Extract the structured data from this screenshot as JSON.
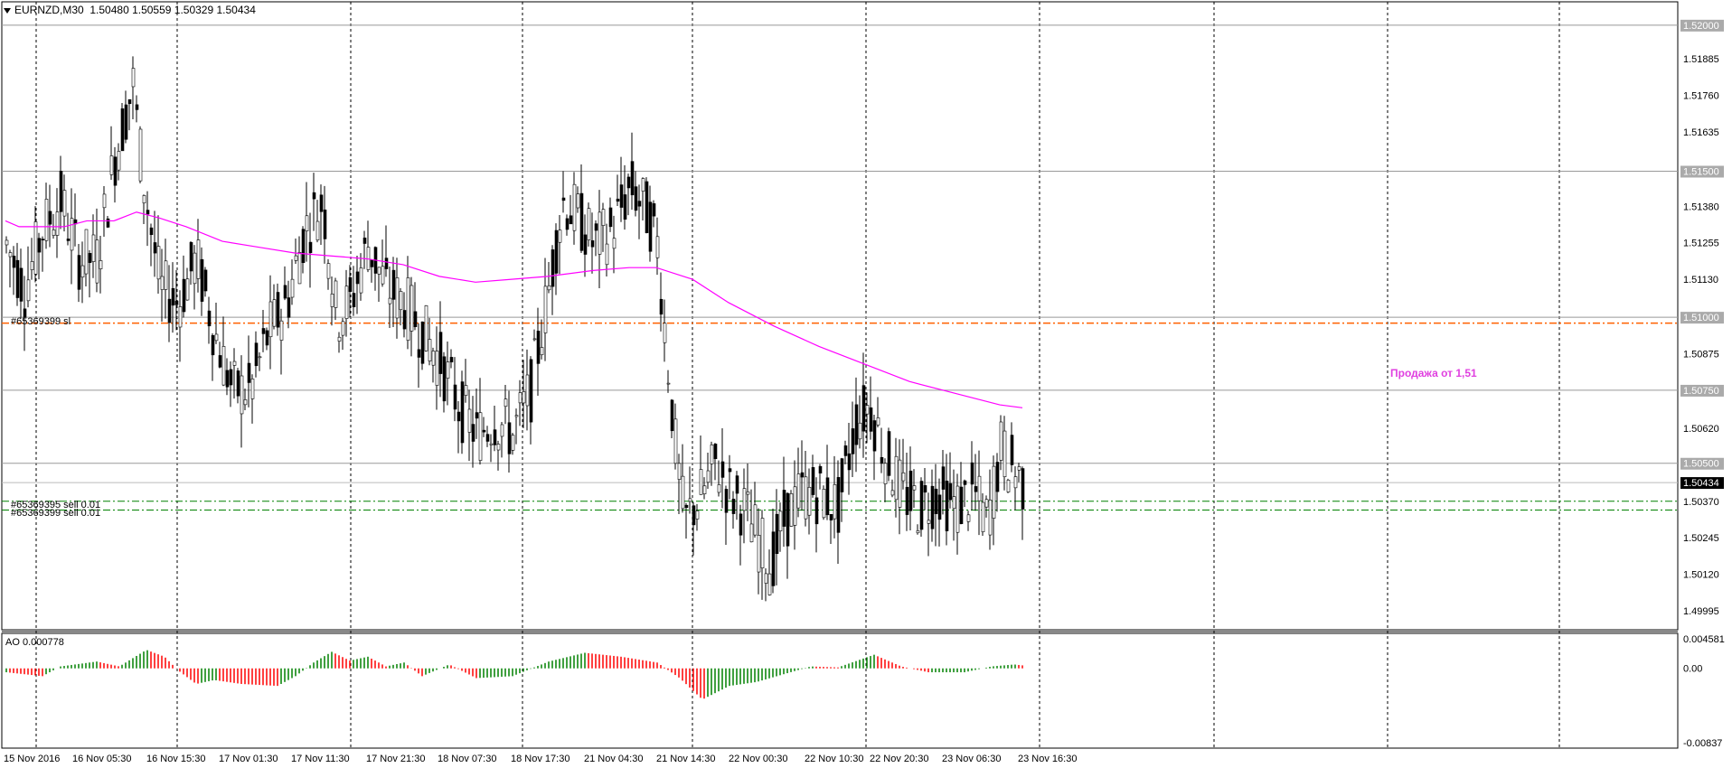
{
  "header": {
    "symbol_tf": "EURNZD,M30",
    "ohlc": "1.50480 1.50559 1.50329 1.50434"
  },
  "orders": {
    "sl": "#65369399 sl",
    "sell1": "#65369395 sell 0.01",
    "sell2": "#65369399 sell 0.01"
  },
  "note": "Продажа от 1,51",
  "indicator": {
    "label": "AO 0.000778",
    "scale_top": "0.004581",
    "scale_zero": "0.00",
    "scale_bottom": "-0.00837"
  },
  "price_scale": [
    "1.52000",
    "1.51885",
    "1.51760",
    "1.51635",
    "1.51380",
    "1.51255",
    "1.51130",
    "1.50875",
    "1.50620",
    "1.50370",
    "1.50245",
    "1.50120",
    "1.49995"
  ],
  "boxed_levels": [
    "1.52000",
    "1.51500",
    "1.51000",
    "1.50750",
    "1.50500"
  ],
  "current_price": "1.50434",
  "time_labels": [
    "15 Nov 2016",
    "16 Nov 05:30",
    "16 Nov 15:30",
    "17 Nov 01:30",
    "17 Nov 11:30",
    "17 Nov 21:30",
    "18 Nov 07:30",
    "18 Nov 17:30",
    "21 Nov 04:30",
    "21 Nov 14:30",
    "22 Nov 00:30",
    "22 Nov 10:30",
    "22 Nov 20:30",
    "23 Nov 06:30",
    "23 Nov 16:30"
  ],
  "colors": {
    "ma": "#ff00ff",
    "ao_up": "#008000",
    "ao_down": "#ff0000",
    "sl_line": "#ff6000",
    "sell_line": "#008000"
  },
  "chart_data": {
    "type": "candlestick",
    "ylim": [
      1.4993,
      1.5208
    ],
    "horizontal_levels": [
      1.52,
      1.515,
      1.51,
      1.5075,
      1.505
    ],
    "sl_level": 1.5098,
    "sell_levels": [
      1.5037,
      1.5034
    ],
    "current_price": 1.50434,
    "ma_points": [
      [
        0,
        1.5133
      ],
      [
        15,
        1.5131
      ],
      [
        40,
        1.5131
      ],
      [
        65,
        1.5131
      ],
      [
        90,
        1.5133
      ],
      [
        120,
        1.5133
      ],
      [
        145,
        1.5136
      ],
      [
        170,
        1.5134
      ],
      [
        200,
        1.5131
      ],
      [
        240,
        1.5126
      ],
      [
        280,
        1.5124
      ],
      [
        320,
        1.5122
      ],
      [
        360,
        1.5121
      ],
      [
        400,
        1.512
      ],
      [
        440,
        1.5118
      ],
      [
        480,
        1.5114
      ],
      [
        520,
        1.5112
      ],
      [
        560,
        1.5113
      ],
      [
        600,
        1.5114
      ],
      [
        650,
        1.5116
      ],
      [
        690,
        1.5117
      ],
      [
        720,
        1.5117
      ],
      [
        760,
        1.5113
      ],
      [
        800,
        1.5105
      ],
      [
        850,
        1.5097
      ],
      [
        900,
        1.509
      ],
      [
        950,
        1.5084
      ],
      [
        1000,
        1.5078
      ],
      [
        1050,
        1.5074
      ],
      [
        1100,
        1.507
      ],
      [
        1125,
        1.5069
      ]
    ],
    "price_path": [
      [
        0,
        1.5125
      ],
      [
        20,
        1.511
      ],
      [
        40,
        1.513
      ],
      [
        60,
        1.514
      ],
      [
        80,
        1.512
      ],
      [
        100,
        1.512
      ],
      [
        120,
        1.5155
      ],
      [
        140,
        1.518
      ],
      [
        150,
        1.515
      ],
      [
        170,
        1.511
      ],
      [
        190,
        1.5105
      ],
      [
        210,
        1.512
      ],
      [
        230,
        1.5095
      ],
      [
        250,
        1.5075
      ],
      [
        270,
        1.5075
      ],
      [
        290,
        1.5095
      ],
      [
        310,
        1.5105
      ],
      [
        330,
        1.513
      ],
      [
        350,
        1.514
      ],
      [
        365,
        1.51
      ],
      [
        380,
        1.5105
      ],
      [
        400,
        1.5125
      ],
      [
        420,
        1.511
      ],
      [
        440,
        1.5105
      ],
      [
        460,
        1.5095
      ],
      [
        480,
        1.5085
      ],
      [
        500,
        1.507
      ],
      [
        520,
        1.506
      ],
      [
        540,
        1.5065
      ],
      [
        560,
        1.506
      ],
      [
        580,
        1.5075
      ],
      [
        600,
        1.511
      ],
      [
        615,
        1.514
      ],
      [
        630,
        1.5135
      ],
      [
        650,
        1.5125
      ],
      [
        670,
        1.513
      ],
      [
        690,
        1.5145
      ],
      [
        700,
        1.514
      ],
      [
        710,
        1.5135
      ],
      [
        720,
        1.5125
      ],
      [
        730,
        1.509
      ],
      [
        740,
        1.5055
      ],
      [
        750,
        1.503
      ],
      [
        770,
        1.504
      ],
      [
        785,
        1.505
      ],
      [
        800,
        1.504
      ],
      [
        815,
        1.5035
      ],
      [
        830,
        1.5025
      ],
      [
        845,
        1.5015
      ],
      [
        860,
        1.503
      ],
      [
        880,
        1.504
      ],
      [
        900,
        1.504
      ],
      [
        920,
        1.5035
      ],
      [
        940,
        1.5065
      ],
      [
        955,
        1.507
      ],
      [
        970,
        1.5055
      ],
      [
        990,
        1.504
      ],
      [
        1010,
        1.5035
      ],
      [
        1030,
        1.504
      ],
      [
        1050,
        1.5035
      ],
      [
        1070,
        1.504
      ],
      [
        1085,
        1.503
      ],
      [
        1100,
        1.5055
      ],
      [
        1110,
        1.505
      ],
      [
        1125,
        1.5043
      ]
    ]
  }
}
